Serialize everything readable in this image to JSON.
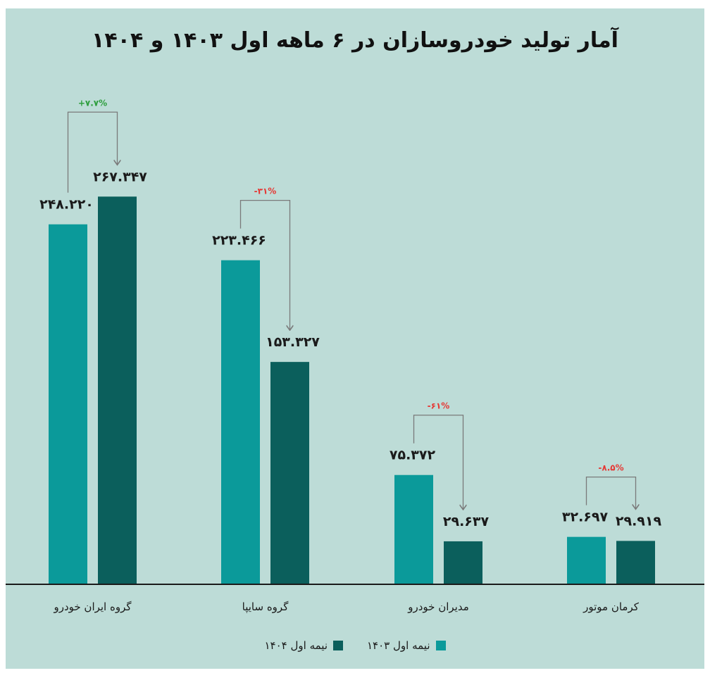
{
  "chart_data": {
    "type": "bar",
    "title": "آمار تولید خودروسازان در ۶ ماهه اول ۱۴۰۳ و ۱۴۰۴",
    "categories": [
      "گروه ایران خودرو",
      "گروه سایپا",
      "مدیران خودرو",
      "کرمان موتور"
    ],
    "series": [
      {
        "name": "نیمه اول ۱۴۰۳",
        "color": "#0b9a9a",
        "values": [
          248220,
          223466,
          75372,
          32697
        ],
        "labels": [
          "۲۴۸.۲۲۰",
          "۲۲۳.۴۶۶",
          "۷۵.۳۷۲",
          "۳۲.۶۹۷"
        ]
      },
      {
        "name": "نیمه اول ۱۴۰۴",
        "color": "#0b5f5c",
        "values": [
          267347,
          153327,
          29637,
          29919
        ],
        "labels": [
          "۲۶۷.۳۴۷",
          "۱۵۳.۳۲۷",
          "۲۹.۶۳۷",
          "۲۹.۹۱۹"
        ]
      }
    ],
    "changes": [
      {
        "text": "+۷.۷%",
        "color": "#2e9e3e"
      },
      {
        "text": "-۳۱%",
        "color": "#e53935"
      },
      {
        "text": "-۶۱%",
        "color": "#e53935"
      },
      {
        "text": "-۸.۵%",
        "color": "#e53935"
      }
    ],
    "ylim": [
      0,
      300000
    ],
    "grid": false,
    "legend_position": "bottom-center",
    "background": "#bddcd7"
  }
}
